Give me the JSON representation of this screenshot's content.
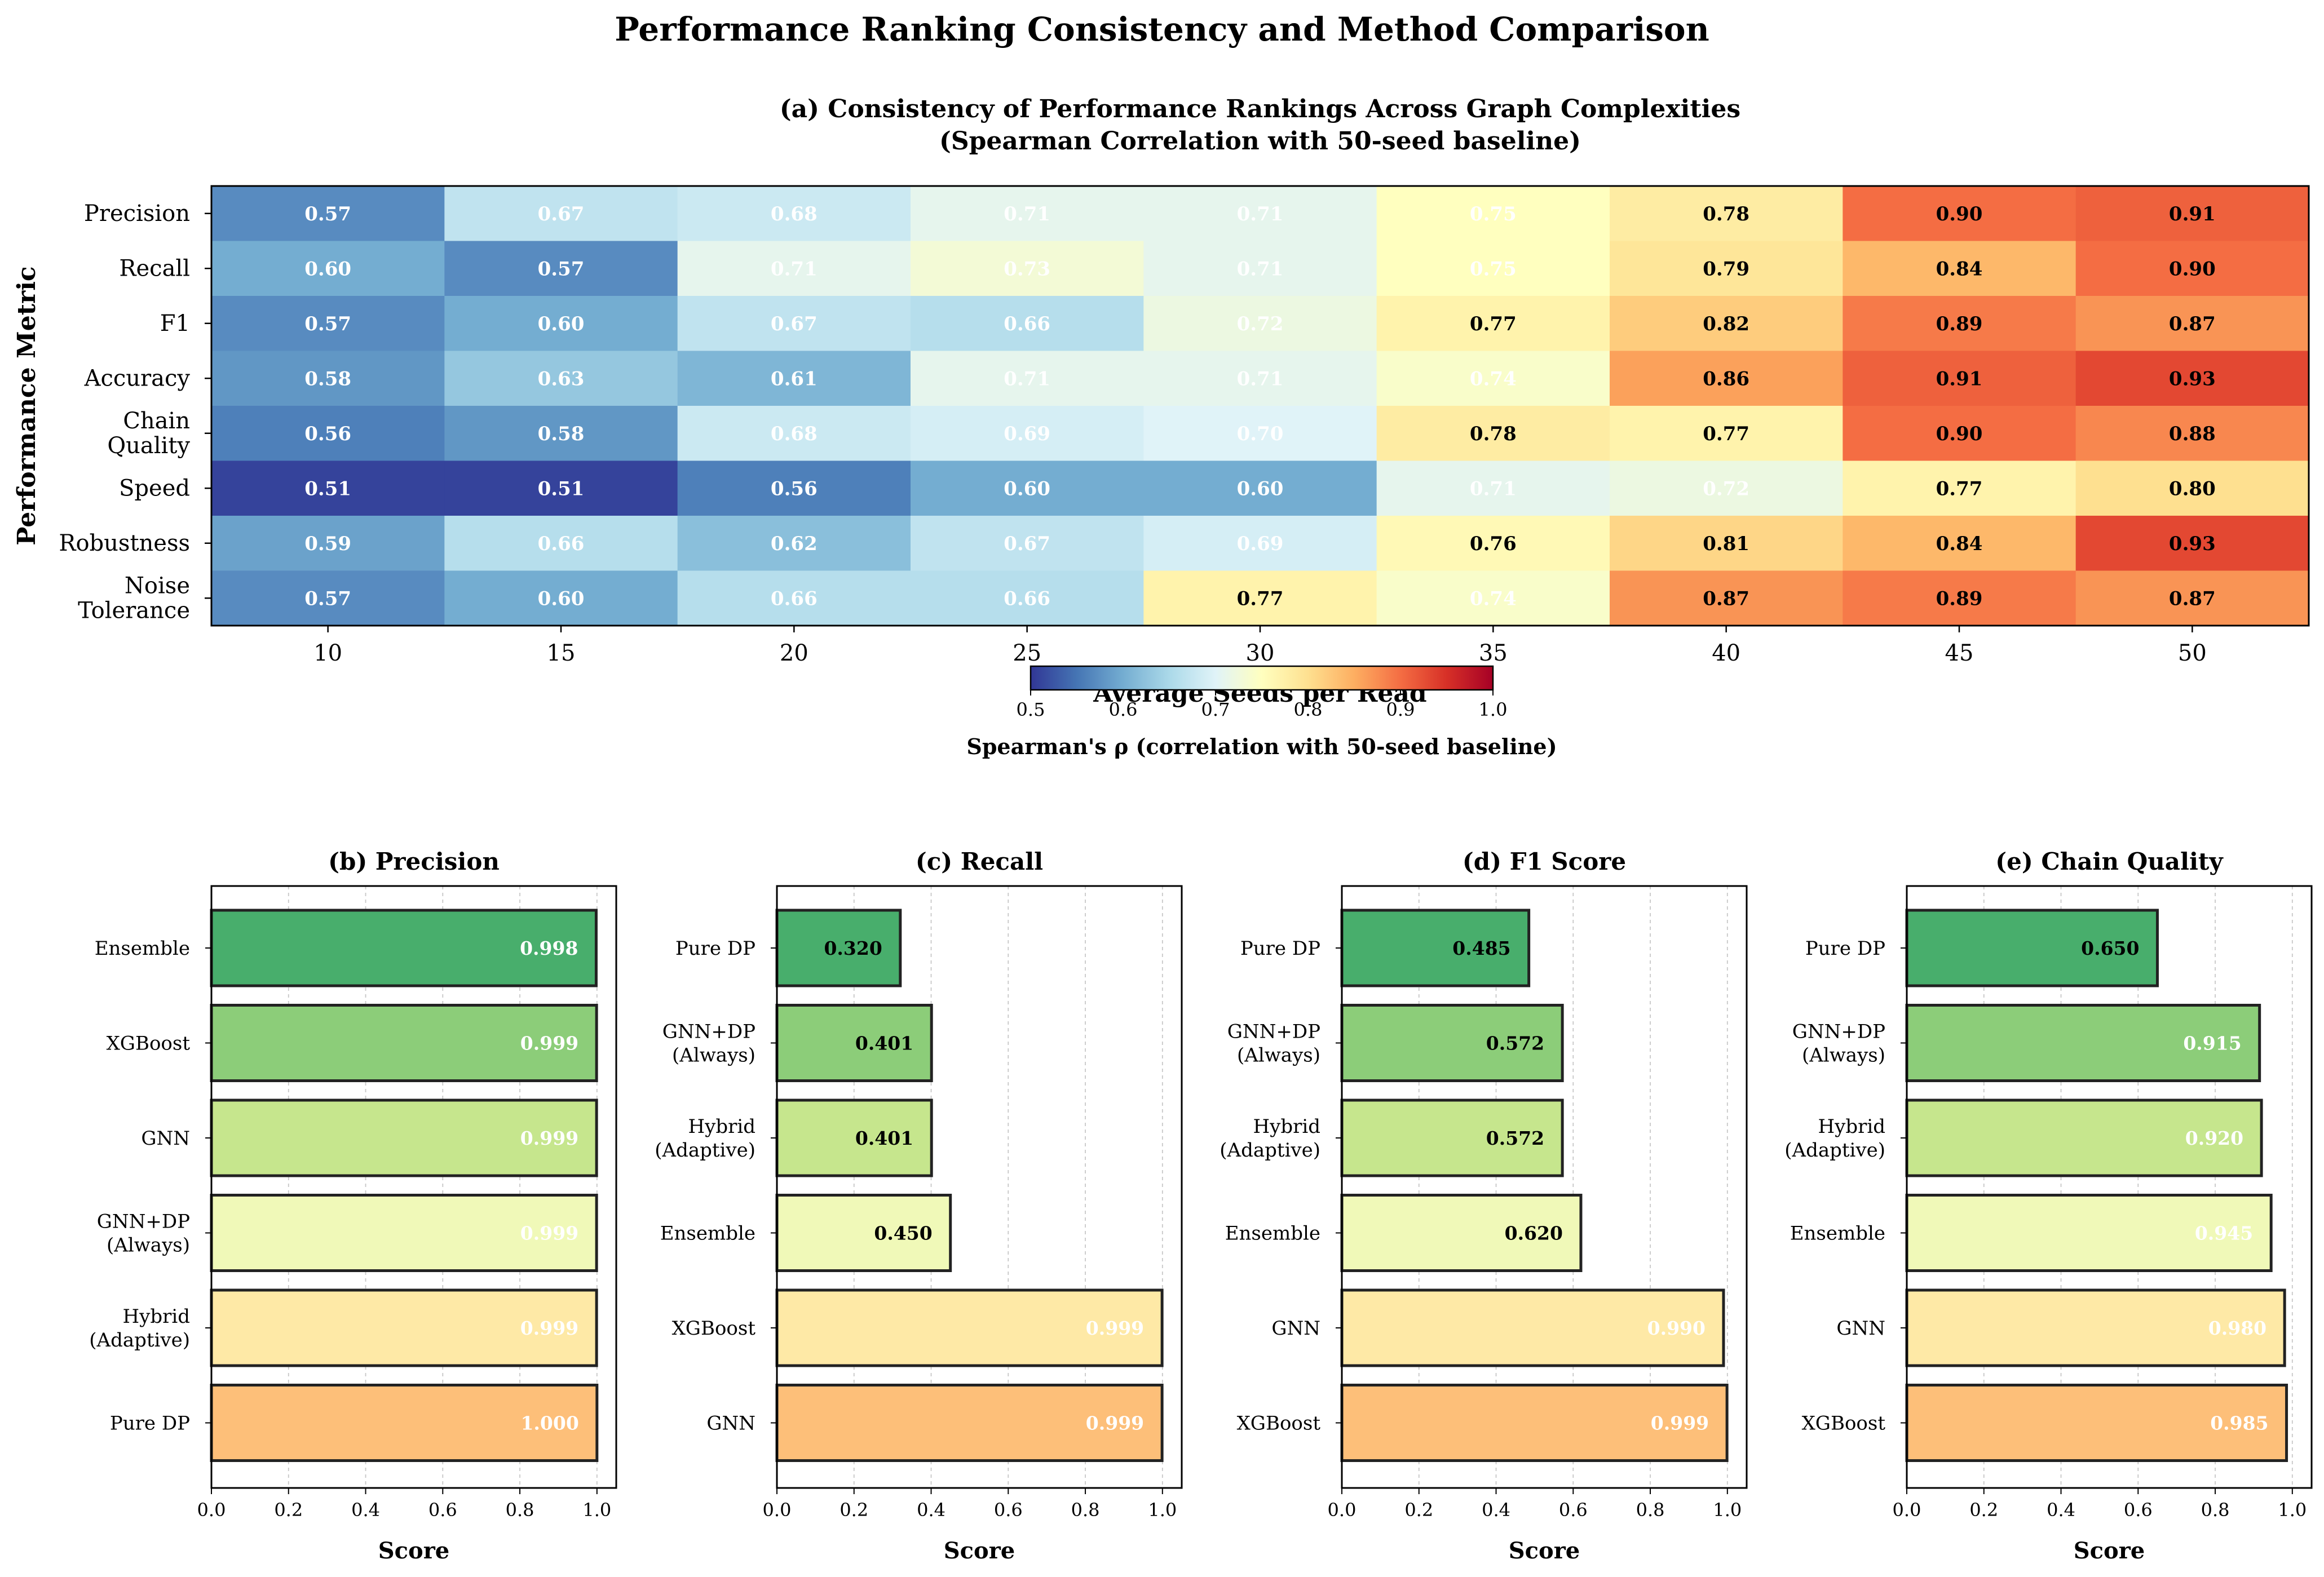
{
  "figure_title": "Performance Ranking Consistency and Method Comparison",
  "chart_data": [
    {
      "id": "a",
      "type": "heatmap",
      "title_line1": "(a) Consistency of Performance Rankings Across Graph Complexities",
      "title_line2": "(Spearman Correlation with 50-seed baseline)",
      "xlabel": "Average Seeds per Read",
      "ylabel": "Performance Metric",
      "x": [
        "10",
        "15",
        "20",
        "25",
        "30",
        "35",
        "40",
        "45",
        "50"
      ],
      "y": [
        "Precision",
        "Recall",
        "F1",
        "Accuracy",
        "Chain\nQuality",
        "Speed",
        "Robustness",
        "Noise\nTolerance"
      ],
      "values": [
        [
          0.57,
          0.67,
          0.68,
          0.71,
          0.71,
          0.75,
          0.78,
          0.9,
          0.91
        ],
        [
          0.6,
          0.57,
          0.71,
          0.73,
          0.71,
          0.75,
          0.79,
          0.84,
          0.9
        ],
        [
          0.57,
          0.6,
          0.67,
          0.66,
          0.72,
          0.77,
          0.82,
          0.89,
          0.87
        ],
        [
          0.58,
          0.63,
          0.61,
          0.71,
          0.71,
          0.74,
          0.86,
          0.91,
          0.93
        ],
        [
          0.56,
          0.58,
          0.68,
          0.69,
          0.7,
          0.78,
          0.77,
          0.9,
          0.88
        ],
        [
          0.51,
          0.51,
          0.56,
          0.6,
          0.6,
          0.71,
          0.72,
          0.77,
          0.8
        ],
        [
          0.59,
          0.66,
          0.62,
          0.67,
          0.69,
          0.76,
          0.81,
          0.84,
          0.93
        ],
        [
          0.57,
          0.6,
          0.66,
          0.66,
          0.77,
          0.74,
          0.87,
          0.89,
          0.87
        ]
      ],
      "colormap": "RdYlBu_r",
      "vmin": 0.5,
      "vmax": 1.0,
      "colorbar_ticks": [
        "0.5",
        "0.6",
        "0.7",
        "0.8",
        "0.9",
        "1.0"
      ],
      "colorbar_label": "Spearman's ρ (correlation with 50-seed baseline)"
    },
    {
      "id": "b",
      "type": "bar",
      "orientation": "horizontal",
      "title": "(b) Precision",
      "xlabel": "Score",
      "xlim": [
        0,
        1.05
      ],
      "ticks": [
        "0.0",
        "0.2",
        "0.4",
        "0.6",
        "0.8",
        "1.0"
      ],
      "categories": [
        "Ensemble",
        "XGBoost",
        "GNN",
        "GNN+DP\n(Always)",
        "Hybrid\n(Adaptive)",
        "Pure DP"
      ],
      "values": [
        0.998,
        0.999,
        0.999,
        0.999,
        0.999,
        1.0
      ],
      "labels": [
        "0.998",
        "0.999",
        "0.999",
        "0.999",
        "0.999",
        "1.000"
      ]
    },
    {
      "id": "c",
      "type": "bar",
      "orientation": "horizontal",
      "title": "(c) Recall",
      "xlabel": "Score",
      "xlim": [
        0,
        1.05
      ],
      "ticks": [
        "0.0",
        "0.2",
        "0.4",
        "0.6",
        "0.8",
        "1.0"
      ],
      "categories": [
        "Pure DP",
        "GNN+DP\n(Always)",
        "Hybrid\n(Adaptive)",
        "Ensemble",
        "XGBoost",
        "GNN"
      ],
      "values": [
        0.32,
        0.401,
        0.401,
        0.45,
        0.999,
        0.999
      ],
      "labels": [
        "0.320",
        "0.401",
        "0.401",
        "0.450",
        "0.999",
        "0.999"
      ]
    },
    {
      "id": "d",
      "type": "bar",
      "orientation": "horizontal",
      "title": "(d) F1 Score",
      "xlabel": "Score",
      "xlim": [
        0,
        1.05
      ],
      "ticks": [
        "0.0",
        "0.2",
        "0.4",
        "0.6",
        "0.8",
        "1.0"
      ],
      "categories": [
        "Pure DP",
        "GNN+DP\n(Always)",
        "Hybrid\n(Adaptive)",
        "Ensemble",
        "GNN",
        "XGBoost"
      ],
      "values": [
        0.485,
        0.572,
        0.572,
        0.62,
        0.99,
        0.999
      ],
      "labels": [
        "0.485",
        "0.572",
        "0.572",
        "0.620",
        "0.990",
        "0.999"
      ]
    },
    {
      "id": "e",
      "type": "bar",
      "orientation": "horizontal",
      "title": "(e) Chain Quality",
      "xlabel": "Score",
      "xlim": [
        0,
        1.05
      ],
      "ticks": [
        "0.0",
        "0.2",
        "0.4",
        "0.6",
        "0.8",
        "1.0"
      ],
      "categories": [
        "Pure DP",
        "GNN+DP\n(Always)",
        "Hybrid\n(Adaptive)",
        "Ensemble",
        "GNN",
        "XGBoost"
      ],
      "values": [
        0.65,
        0.915,
        0.92,
        0.945,
        0.98,
        0.985
      ],
      "labels": [
        "0.650",
        "0.915",
        "0.920",
        "0.945",
        "0.980",
        "0.985"
      ]
    }
  ],
  "bar_colors": [
    "#48ae6c",
    "#8ccd79",
    "#c6e68d",
    "#f0f9b8",
    "#fee9a6",
    "#fdbf79"
  ],
  "bar_label_colors": [
    "#ffffff",
    "#000000"
  ]
}
